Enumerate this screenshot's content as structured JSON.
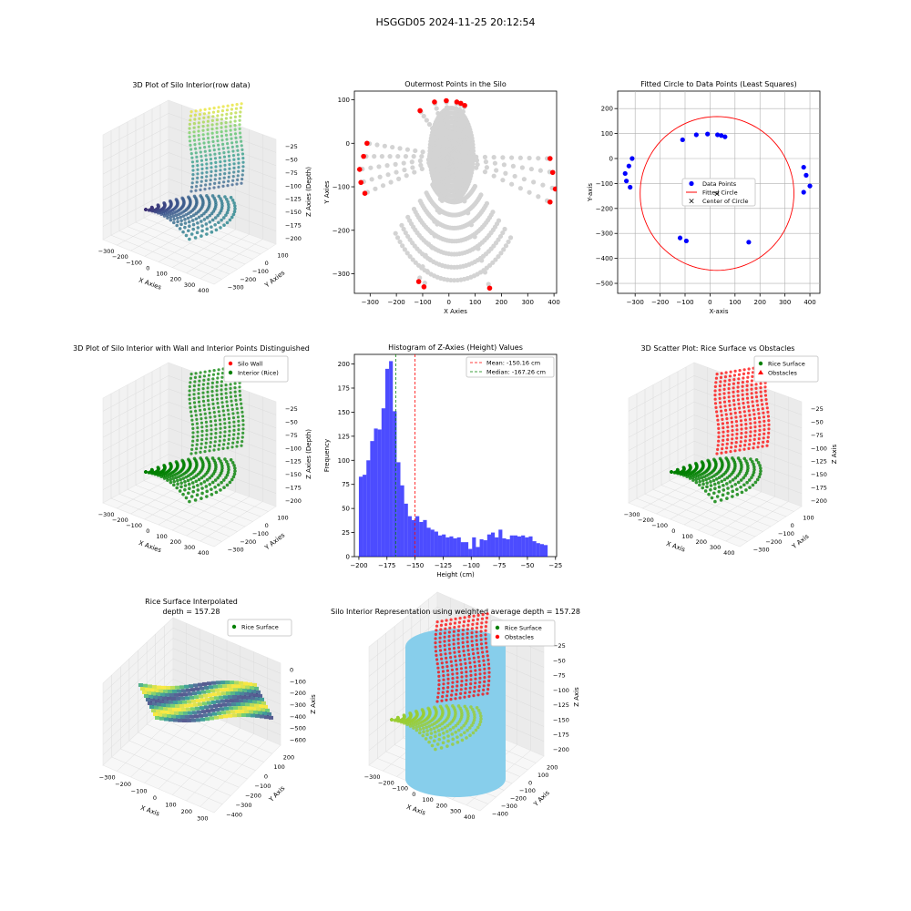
{
  "figure_title": "HSGGD05 2024-11-25 20:12:54",
  "chart_data": [
    {
      "type": "scatter",
      "projection": "3d",
      "title": "3D Plot of Silo Interior(row data)",
      "xlabel": "X Axies",
      "ylabel": "Y Axies",
      "zlabel": "Z Axies (Depth)",
      "x_ticks": [
        "−300",
        "−200",
        "−100",
        "0",
        "100",
        "200",
        "300",
        "400"
      ],
      "y_ticks": [
        "100",
        "0",
        "−100",
        "−200",
        "−300"
      ],
      "z_ticks": [
        "−25",
        "−50",
        "−75",
        "−100",
        "−125",
        "−150",
        "−175",
        "−200"
      ],
      "colormap": "viridis",
      "grid": true
    },
    {
      "type": "scatter",
      "title": "Outermost Points in the Silo",
      "xlabel": "X Axies",
      "ylabel": "Y Axies",
      "xlim": [
        -360,
        410
      ],
      "ylim": [
        -345,
        120
      ],
      "x_ticks": [
        -300,
        -200,
        -100,
        0,
        100,
        200,
        300,
        400
      ],
      "y_ticks": [
        100,
        0,
        -100,
        -200,
        -300
      ],
      "colors": {
        "interior": "#d3d3d3",
        "outermost": "#ff0000"
      },
      "outermost_points": [
        [
          -312,
          0
        ],
        [
          -325,
          -30
        ],
        [
          -340,
          -60
        ],
        [
          -335,
          -90
        ],
        [
          -320,
          -115
        ],
        [
          -110,
          75
        ],
        [
          -55,
          95
        ],
        [
          -10,
          98
        ],
        [
          30,
          95
        ],
        [
          45,
          92
        ],
        [
          60,
          87
        ],
        [
          385,
          -35
        ],
        [
          395,
          -67
        ],
        [
          405,
          -105
        ],
        [
          385,
          -135
        ],
        [
          -115,
          -318
        ],
        [
          -95,
          -330
        ],
        [
          155,
          -333
        ]
      ]
    },
    {
      "type": "scatter",
      "title": "Fitted Circle to Data Points (Least Squares)",
      "xlabel": "X-axis",
      "ylabel": "Y-axis",
      "xlim": [
        -370,
        440
      ],
      "ylim": [
        -540,
        270
      ],
      "x_ticks": [
        -300,
        -200,
        -100,
        0,
        100,
        200,
        300,
        400
      ],
      "y_ticks": [
        200,
        100,
        0,
        -100,
        -200,
        -300,
        -400,
        -500
      ],
      "grid": true,
      "legend": [
        "Data Points",
        "Fitted Circle",
        "Center of Circle"
      ],
      "legend_loc": "center",
      "colors": {
        "points": "#0000ff",
        "circle": "#ff0000",
        "center": "#008000"
      },
      "circle": {
        "cx": 28,
        "cy": -140,
        "r": 308
      },
      "points": [
        [
          -312,
          0
        ],
        [
          -325,
          -30
        ],
        [
          -340,
          -60
        ],
        [
          -335,
          -90
        ],
        [
          -320,
          -115
        ],
        [
          -110,
          75
        ],
        [
          -55,
          95
        ],
        [
          -10,
          98
        ],
        [
          30,
          95
        ],
        [
          45,
          92
        ],
        [
          60,
          87
        ],
        [
          375,
          -35
        ],
        [
          385,
          -67
        ],
        [
          400,
          -110
        ],
        [
          375,
          -135
        ],
        [
          -120,
          -318
        ],
        [
          -95,
          -330
        ],
        [
          155,
          -335
        ]
      ]
    },
    {
      "type": "scatter",
      "projection": "3d",
      "title": "3D Plot of Silo Interior with Wall and Interior Points Distinguished",
      "xlabel": "X Axies",
      "ylabel": "Y Axies",
      "zlabel": "Z Axies (Depth)",
      "x_ticks": [
        "−300",
        "−200",
        "−100",
        "0",
        "100",
        "200",
        "300",
        "400"
      ],
      "y_ticks": [
        "100",
        "0",
        "−100",
        "−200",
        "−300"
      ],
      "z_ticks": [
        "−25",
        "−50",
        "−75",
        "−100",
        "−125",
        "−150",
        "−175",
        "−200"
      ],
      "legend": [
        "Silo Wall",
        "Interior (Rice)"
      ],
      "legend_colors": [
        "#ff0000",
        "#008000"
      ],
      "grid": true
    },
    {
      "type": "bar",
      "subtype": "histogram",
      "title": "Histogram of Z-Axies (Height) Values",
      "xlabel": "Height (cm)",
      "ylabel": "Frequency",
      "x_range": [
        -200,
        -32
      ],
      "bin_width": 3.36,
      "xlim": [
        -204,
        -24
      ],
      "ylim": [
        0,
        210
      ],
      "x_ticks": [
        -200,
        -175,
        -150,
        -125,
        -100,
        -75,
        -50,
        -25
      ],
      "y_ticks": [
        0,
        25,
        50,
        75,
        100,
        125,
        150,
        175,
        200
      ],
      "bar_color": "#0000ff",
      "values": [
        83,
        85,
        100,
        120,
        133,
        132,
        154,
        195,
        203,
        151,
        98,
        74,
        55,
        42,
        38,
        42,
        36,
        38,
        30,
        28,
        26,
        22,
        23,
        20,
        21,
        19,
        20,
        15,
        15,
        8,
        20,
        10,
        18,
        17,
        23,
        25,
        20,
        28,
        19,
        18,
        22,
        22,
        21,
        22,
        20,
        21,
        16,
        14,
        13,
        12
      ],
      "vlines": [
        {
          "label": "Mean: -150.16 cm",
          "x": -150.16,
          "color": "#ff0000"
        },
        {
          "label": "Median: -167.26 cm",
          "x": -167.26,
          "color": "#008000"
        }
      ],
      "legend_loc": "top-right"
    },
    {
      "type": "scatter",
      "projection": "3d",
      "title": "3D Scatter Plot: Rice Surface vs Obstacles",
      "xlabel": "X Axis",
      "ylabel": "Y Axis",
      "zlabel": "Z Axis",
      "x_ticks": [
        "−300",
        "−200",
        "−100",
        "0",
        "100",
        "200",
        "300",
        "400"
      ],
      "y_ticks": [
        "100",
        "0",
        "−100",
        "−200",
        "−300"
      ],
      "z_ticks": [
        "−25",
        "−50",
        "−75",
        "−100",
        "−125",
        "−150",
        "−175",
        "−200"
      ],
      "legend": [
        "Rice Surface",
        "Obstacles"
      ],
      "legend_colors": [
        "#008000",
        "#ff0000"
      ],
      "legend_markers": [
        "●",
        "▲"
      ],
      "grid": true
    },
    {
      "type": "scatter",
      "projection": "3d",
      "title": "Rice Surface Interpolated",
      "subtitle": "depth = 157.28",
      "xlabel": "X Axis",
      "ylabel": "Y Axis",
      "zlabel": "Z Axis",
      "x_ticks": [
        "−300",
        "−200",
        "−100",
        "0",
        "100",
        "200",
        "300"
      ],
      "y_ticks": [
        "200",
        "100",
        "0",
        "−100",
        "−200",
        "−300",
        "−400"
      ],
      "z_ticks": [
        "0",
        "−100",
        "−200",
        "−300",
        "−400",
        "−500",
        "−600"
      ],
      "legend": [
        "Rice Surface"
      ],
      "legend_colors": [
        "#008000"
      ],
      "grid": true
    },
    {
      "type": "scatter",
      "projection": "3d",
      "title": "Silo Interior Representation using weighted average depth = 157.28",
      "xlabel": "X Axis",
      "ylabel": "Y Axis",
      "zlabel": "Z Axis",
      "x_ticks": [
        "−300",
        "−200",
        "−100",
        "0",
        "100",
        "200",
        "300",
        "400"
      ],
      "y_ticks": [
        "200",
        "100",
        "0",
        "−100",
        "−200",
        "−300",
        "−400"
      ],
      "z_ticks": [
        "−25",
        "−50",
        "−75",
        "−100",
        "−125",
        "−150",
        "−175",
        "−200"
      ],
      "legend": [
        "Rice Surface",
        "Obstacles"
      ],
      "legend_colors": [
        "#008000",
        "#ff0000"
      ],
      "cylinder_color": "#87ceeb",
      "grid": true
    }
  ]
}
